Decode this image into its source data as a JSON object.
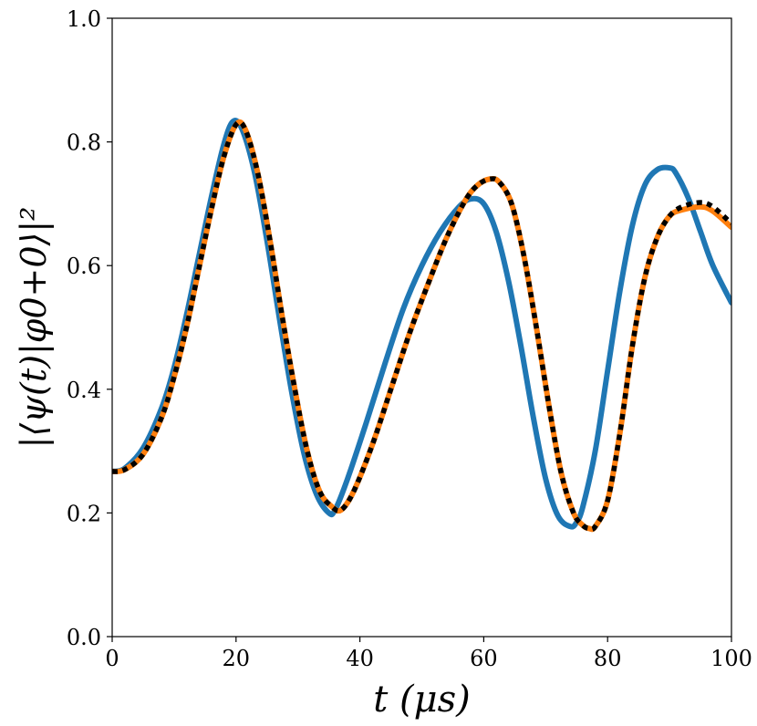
{
  "chart_data": {
    "type": "line",
    "xlabel": "t (μs)",
    "ylabel": "|⟨ψ(t)|φ0+0⟩|²",
    "xlim": [
      0,
      100
    ],
    "ylim": [
      0.0,
      1.0
    ],
    "x_ticks": [
      "0",
      "20",
      "40",
      "60",
      "80",
      "100"
    ],
    "y_ticks": [
      "0.0",
      "0.2",
      "0.4",
      "0.6",
      "0.8",
      "1.0"
    ],
    "grid": false,
    "series": [
      {
        "name": "blue",
        "color": "#1f77b4",
        "style": "solid",
        "x": [
          0,
          2,
          5,
          8,
          10,
          12,
          14,
          16,
          18,
          19.5,
          21,
          23,
          25,
          27,
          29,
          31,
          33,
          35,
          36,
          38,
          41,
          44,
          47,
          50,
          53,
          56,
          58,
          60,
          62,
          64,
          66,
          68,
          70,
          72,
          74,
          75,
          76,
          78,
          80,
          82,
          84,
          86,
          88,
          90,
          91,
          93,
          95,
          97,
          100
        ],
        "values": [
          0.267,
          0.272,
          0.305,
          0.37,
          0.435,
          0.52,
          0.615,
          0.71,
          0.795,
          0.833,
          0.82,
          0.75,
          0.64,
          0.515,
          0.395,
          0.295,
          0.23,
          0.2,
          0.205,
          0.255,
          0.345,
          0.44,
          0.53,
          0.6,
          0.655,
          0.695,
          0.708,
          0.7,
          0.655,
          0.575,
          0.47,
          0.355,
          0.255,
          0.195,
          0.178,
          0.185,
          0.21,
          0.3,
          0.43,
          0.56,
          0.665,
          0.73,
          0.755,
          0.758,
          0.75,
          0.71,
          0.655,
          0.6,
          0.54
        ]
      },
      {
        "name": "orange",
        "color": "#ff7f0e",
        "style": "solid",
        "x": [
          0,
          2,
          5,
          8,
          10,
          12,
          14,
          16,
          18,
          20,
          21.5,
          23.5,
          25.5,
          27.5,
          29.5,
          31.5,
          33.5,
          35.5,
          37,
          39,
          42,
          45,
          48,
          51,
          54,
          57,
          59,
          61,
          62.5,
          64.5,
          66.5,
          68.5,
          70.5,
          72.5,
          74.5,
          76,
          77,
          78,
          80,
          82,
          84,
          86,
          88,
          90,
          92,
          95,
          97,
          100
        ],
        "values": [
          0.267,
          0.27,
          0.295,
          0.355,
          0.42,
          0.5,
          0.595,
          0.69,
          0.775,
          0.828,
          0.82,
          0.75,
          0.64,
          0.515,
          0.4,
          0.3,
          0.235,
          0.21,
          0.205,
          0.235,
          0.31,
          0.4,
          0.49,
          0.57,
          0.645,
          0.705,
          0.73,
          0.74,
          0.735,
          0.7,
          0.615,
          0.5,
          0.375,
          0.265,
          0.2,
          0.18,
          0.175,
          0.178,
          0.22,
          0.33,
          0.47,
          0.58,
          0.645,
          0.68,
          0.69,
          0.695,
          0.688,
          0.662
        ]
      },
      {
        "name": "black-dotted",
        "color": "#000000",
        "style": "dotted",
        "x": [
          0,
          2,
          5,
          8,
          10,
          12,
          14,
          16,
          18,
          20,
          21.5,
          23.5,
          25.5,
          27.5,
          29.5,
          31.5,
          33.5,
          35.5,
          37,
          39,
          42,
          45,
          48,
          51,
          54,
          57,
          59,
          61,
          62.5,
          64.5,
          66.5,
          68.5,
          70.5,
          72.5,
          74.5,
          76,
          77,
          78,
          80,
          82,
          84,
          86,
          88,
          90,
          92,
          95,
          97,
          100
        ],
        "values": [
          0.267,
          0.27,
          0.295,
          0.355,
          0.42,
          0.5,
          0.595,
          0.69,
          0.775,
          0.828,
          0.82,
          0.75,
          0.64,
          0.515,
          0.4,
          0.3,
          0.235,
          0.21,
          0.205,
          0.235,
          0.31,
          0.4,
          0.49,
          0.57,
          0.645,
          0.705,
          0.73,
          0.74,
          0.735,
          0.7,
          0.615,
          0.5,
          0.375,
          0.265,
          0.2,
          0.18,
          0.175,
          0.178,
          0.22,
          0.33,
          0.47,
          0.58,
          0.645,
          0.68,
          0.695,
          0.702,
          0.695,
          0.668
        ]
      }
    ]
  }
}
